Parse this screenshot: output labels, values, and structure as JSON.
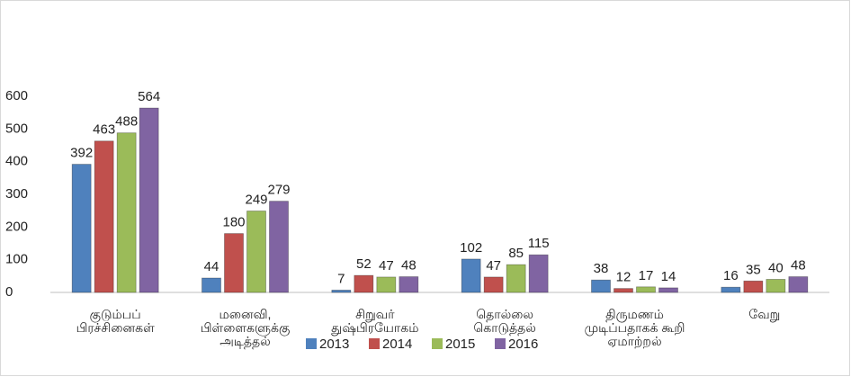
{
  "chart_data": {
    "type": "bar",
    "categories": [
      "குடும்பப்\nபிரச்சினைகள்",
      "மனைவி,\nபிள்ளைகளுக்கு\nஅடித்தல்",
      "சிறுவர்\nதுஷ்பிரயோகம்",
      "தொல்லை\nகொடுத்தல்",
      "திருமணம்\nமுடிப்பதாகக் கூறி\nஏமாற்றல்",
      "வேறு"
    ],
    "series": [
      {
        "name": "2013",
        "color": "#4f81bd",
        "values": [
          392,
          44,
          7,
          102,
          38,
          16
        ]
      },
      {
        "name": "2014",
        "color": "#c0504d",
        "values": [
          463,
          180,
          52,
          47,
          12,
          35
        ]
      },
      {
        "name": "2015",
        "color": "#9bbb59",
        "values": [
          488,
          249,
          47,
          85,
          17,
          40
        ]
      },
      {
        "name": "2016",
        "color": "#8064a2",
        "values": [
          564,
          279,
          48,
          115,
          14,
          48
        ]
      }
    ],
    "ylim": [
      0,
      600
    ],
    "yticks": [
      0,
      100,
      200,
      300,
      400,
      500,
      600
    ],
    "legend": "bottom"
  }
}
